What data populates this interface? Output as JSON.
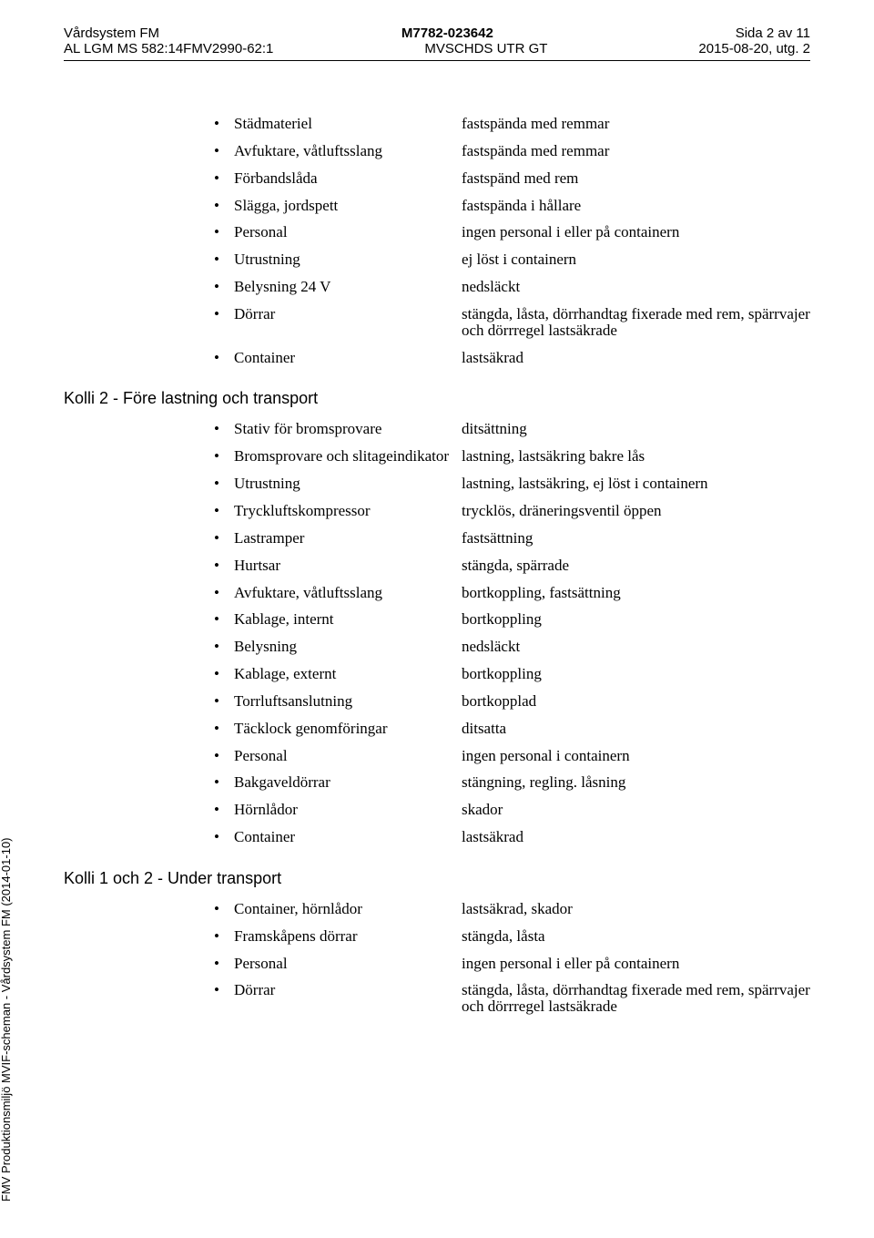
{
  "header": {
    "line1_left": "Vårdsystem FM",
    "line1_center": "M7782-023642",
    "line1_right": "Sida 2 av 11",
    "line2_left": "AL LGM MS 582:14FMV2990-62:1",
    "line2_center": "MVSCHDS UTR GT",
    "line2_right": "2015-08-20, utg. 2"
  },
  "sidetext": "FMV Produktionsmiljö MVIF-scheman - Vårdsystem FM (2014-01-10)",
  "sections": {
    "s1": {
      "items": [
        {
          "l": "Städmateriel",
          "r": "fastspända med remmar"
        },
        {
          "l": "Avfuktare, våtluftsslang",
          "r": "fastspända med remmar"
        },
        {
          "l": "Förbandslåda",
          "r": "fastspänd med rem"
        },
        {
          "l": "Slägga, jordspett",
          "r": "fastspända i hållare"
        },
        {
          "l": "Personal",
          "r": "ingen personal i eller på containern"
        },
        {
          "l": "Utrustning",
          "r": "ej löst i containern"
        },
        {
          "l": "Belysning 24 V",
          "r": "nedsläckt"
        },
        {
          "l": "Dörrar",
          "r": "stängda, låsta, dörrhandtag fixerade med rem, spärrvajer och dörrregel lastsäkrade"
        },
        {
          "l": "Container",
          "r": "lastsäkrad"
        }
      ]
    },
    "s2": {
      "heading": "Kolli 2 - Före lastning och transport",
      "items": [
        {
          "l": "Stativ för bromsprovare",
          "r": "ditsättning"
        },
        {
          "l": "Bromsprovare och slitageindikator",
          "r": "lastning, lastsäkring bakre lås"
        },
        {
          "l": "Utrustning",
          "r": "lastning, lastsäkring, ej löst i containern"
        },
        {
          "l": "Tryckluftskompressor",
          "r": "trycklös, dräneringsventil öppen"
        },
        {
          "l": "Lastramper",
          "r": "fastsättning"
        },
        {
          "l": "Hurtsar",
          "r": "stängda, spärrade"
        },
        {
          "l": "Avfuktare, våtluftsslang",
          "r": "bortkoppling, fastsättning"
        },
        {
          "l": "Kablage, internt",
          "r": "bortkoppling"
        },
        {
          "l": "Belysning",
          "r": "nedsläckt"
        },
        {
          "l": "Kablage, externt",
          "r": "bortkoppling"
        },
        {
          "l": "Torrluftsanslutning",
          "r": "bortkopplad"
        },
        {
          "l": "Täcklock genomföringar",
          "r": "ditsatta"
        },
        {
          "l": "Personal",
          "r": "ingen personal i containern"
        },
        {
          "l": "Bakgaveldörrar",
          "r": "stängning, regling. låsning"
        },
        {
          "l": "Hörnlådor",
          "r": "skador"
        },
        {
          "l": "Container",
          "r": "lastsäkrad"
        }
      ]
    },
    "s3": {
      "heading": "Kolli 1 och 2 - Under transport",
      "items": [
        {
          "l": "Container, hörnlådor",
          "r": "lastsäkrad, skador"
        },
        {
          "l": "Framskåpens dörrar",
          "r": "stängda, låsta"
        },
        {
          "l": "Personal",
          "r": "ingen personal i eller på containern"
        },
        {
          "l": "Dörrar",
          "r": "stängda, låsta, dörrhandtag fixerade med rem, spärrvajer och dörrregel lastsäkrade"
        }
      ]
    }
  }
}
